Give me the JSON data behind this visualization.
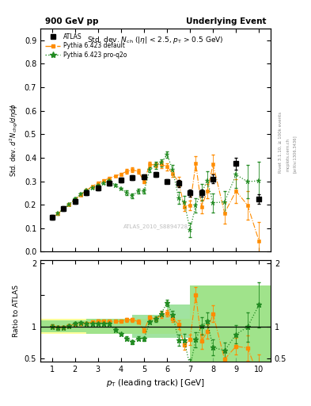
{
  "atlas_x": [
    1.0,
    1.5,
    2.0,
    2.5,
    3.0,
    3.5,
    4.0,
    4.5,
    5.0,
    5.5,
    6.0,
    6.5,
    7.0,
    7.5,
    8.0,
    9.0,
    10.0
  ],
  "atlas_y": [
    0.145,
    0.185,
    0.215,
    0.25,
    0.27,
    0.29,
    0.305,
    0.315,
    0.32,
    0.33,
    0.3,
    0.29,
    0.25,
    0.25,
    0.31,
    0.375,
    0.225
  ],
  "atlas_yerr": [
    0.01,
    0.01,
    0.01,
    0.01,
    0.01,
    0.01,
    0.01,
    0.01,
    0.01,
    0.01,
    0.01,
    0.015,
    0.015,
    0.015,
    0.02,
    0.025,
    0.02
  ],
  "pythia_def_x": [
    1.0,
    1.25,
    1.5,
    1.75,
    2.0,
    2.25,
    2.5,
    2.75,
    3.0,
    3.25,
    3.5,
    3.75,
    4.0,
    4.25,
    4.5,
    4.75,
    5.0,
    5.25,
    5.5,
    5.75,
    6.0,
    6.25,
    6.5,
    6.75,
    7.0,
    7.25,
    7.5,
    7.75,
    8.0,
    8.5,
    9.0,
    9.5,
    10.0
  ],
  "pythia_def_y": [
    0.145,
    0.162,
    0.182,
    0.202,
    0.222,
    0.242,
    0.262,
    0.278,
    0.293,
    0.303,
    0.313,
    0.322,
    0.33,
    0.342,
    0.348,
    0.342,
    0.3,
    0.372,
    0.368,
    0.372,
    0.362,
    0.332,
    0.298,
    0.192,
    0.198,
    0.375,
    0.192,
    0.258,
    0.372,
    0.165,
    0.258,
    0.198,
    0.045
  ],
  "pythia_def_yerr": [
    0.005,
    0.005,
    0.005,
    0.005,
    0.005,
    0.005,
    0.005,
    0.005,
    0.005,
    0.005,
    0.005,
    0.005,
    0.005,
    0.01,
    0.01,
    0.01,
    0.01,
    0.01,
    0.01,
    0.015,
    0.015,
    0.015,
    0.02,
    0.02,
    0.02,
    0.03,
    0.03,
    0.03,
    0.04,
    0.045,
    0.05,
    0.06,
    0.08
  ],
  "pythia_q2o_x": [
    1.0,
    1.25,
    1.5,
    1.75,
    2.0,
    2.25,
    2.5,
    2.75,
    3.0,
    3.25,
    3.5,
    3.75,
    4.0,
    4.25,
    4.5,
    4.75,
    5.0,
    5.25,
    5.5,
    5.75,
    6.0,
    6.25,
    6.5,
    6.75,
    7.0,
    7.25,
    7.5,
    7.75,
    8.0,
    8.5,
    9.0,
    9.5,
    10.0
  ],
  "pythia_q2o_y": [
    0.145,
    0.162,
    0.182,
    0.202,
    0.225,
    0.245,
    0.26,
    0.272,
    0.283,
    0.292,
    0.302,
    0.283,
    0.268,
    0.252,
    0.238,
    0.258,
    0.258,
    0.348,
    0.368,
    0.378,
    0.413,
    0.348,
    0.228,
    0.212,
    0.092,
    0.198,
    0.252,
    0.302,
    0.208,
    0.212,
    0.328,
    0.298,
    0.302
  ],
  "pythia_q2o_yerr": [
    0.005,
    0.005,
    0.005,
    0.005,
    0.005,
    0.005,
    0.005,
    0.005,
    0.005,
    0.005,
    0.005,
    0.005,
    0.005,
    0.01,
    0.01,
    0.01,
    0.01,
    0.01,
    0.015,
    0.015,
    0.015,
    0.02,
    0.025,
    0.025,
    0.03,
    0.03,
    0.035,
    0.04,
    0.04,
    0.045,
    0.055,
    0.07,
    0.08
  ],
  "atlas_color": "#000000",
  "pythia_def_color": "#ff8c00",
  "pythia_q2o_color": "#228b22",
  "ylim_main": [
    0.0,
    0.95
  ],
  "ylim_ratio": [
    0.45,
    2.05
  ],
  "xlim": [
    0.5,
    10.5
  ],
  "atlas_band_edges": [
    0.5,
    2.5,
    4.5,
    6.0,
    7.0,
    8.0,
    9.0,
    10.5
  ],
  "atlas_band_lo": [
    0.88,
    0.88,
    0.88,
    0.88,
    0.45,
    0.45,
    0.45,
    0.45
  ],
  "atlas_band_hi": [
    1.12,
    1.12,
    1.12,
    1.12,
    1.65,
    1.65,
    1.65,
    1.65
  ],
  "q2o_band_edges": [
    0.5,
    2.5,
    4.5,
    6.0,
    7.0,
    10.5
  ],
  "q2o_band_lo": [
    0.91,
    0.88,
    0.82,
    0.82,
    0.45,
    0.45
  ],
  "q2o_band_hi": [
    1.09,
    1.12,
    1.18,
    1.35,
    1.65,
    1.65
  ]
}
